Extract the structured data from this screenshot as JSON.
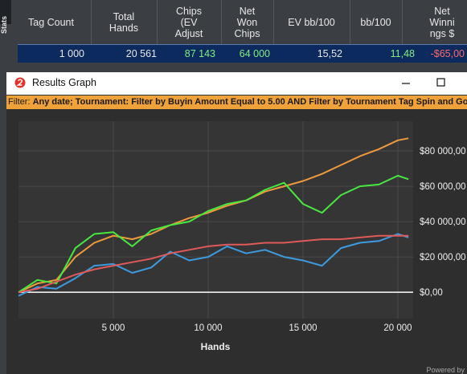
{
  "stats_table": {
    "tab": "Stats",
    "headers": [
      [
        "Tag Count"
      ],
      [
        "Total",
        "Hands"
      ],
      [
        "Chips",
        "(EV",
        "Adjust"
      ],
      [
        "Net",
        "Won",
        "Chips"
      ],
      [
        "EV bb/100"
      ],
      [
        "bb/100"
      ],
      [
        "Net",
        "Winni",
        "ngs $"
      ]
    ],
    "row": [
      "1 000",
      "20 561",
      "87 143",
      "64 000",
      "15,52",
      "11,48",
      "-$65,00"
    ]
  },
  "window": {
    "title": "Results Graph",
    "filter_label": "Filter:",
    "filter_text": "Any date; Tournament: Filter by Buyin Amount Equal to 5.00 AND Filter by Tournament Tag  Spin and Go Win",
    "footer": "Powered by"
  },
  "chart_data": {
    "type": "line",
    "x_label": "Hands",
    "x": [
      0,
      1000,
      2000,
      3000,
      4000,
      5000,
      6000,
      7000,
      8000,
      9000,
      10000,
      11000,
      12000,
      13000,
      14000,
      15000,
      16000,
      17000,
      18000,
      19000,
      20000,
      20561
    ],
    "series": [
      {
        "color": "#ef9a3c",
        "values": [
          0,
          5000,
          7000,
          20000,
          28000,
          32000,
          30000,
          33000,
          38000,
          42000,
          45000,
          49000,
          52000,
          57000,
          60000,
          63000,
          67000,
          72000,
          77000,
          81000,
          86000,
          87143
        ]
      },
      {
        "color": "#49e83f",
        "values": [
          0,
          7000,
          5000,
          25000,
          33000,
          34000,
          26000,
          35000,
          38000,
          40000,
          46000,
          50000,
          52000,
          58000,
          62000,
          50000,
          45000,
          55000,
          60000,
          61000,
          66000,
          64000
        ]
      },
      {
        "color": "#3d9be0",
        "values": [
          -2000,
          3000,
          2000,
          8000,
          15000,
          16000,
          11000,
          14000,
          23000,
          18000,
          20000,
          26000,
          22000,
          24000,
          20000,
          18000,
          15000,
          25000,
          28000,
          29000,
          33000,
          31000
        ]
      },
      {
        "color": "#e05a5a",
        "values": [
          0,
          2000,
          6000,
          10000,
          13000,
          15000,
          17000,
          19000,
          22000,
          24000,
          26000,
          27000,
          27000,
          28000,
          28000,
          29000,
          30000,
          30000,
          31000,
          32000,
          32000,
          32000
        ]
      }
    ],
    "xlim": [
      0,
      20700
    ],
    "ylim": [
      -14000,
      95000
    ],
    "xticks": [
      {
        "value": 5000,
        "label": "5 000"
      },
      {
        "value": 10000,
        "label": "10 000"
      },
      {
        "value": 15000,
        "label": "15 000"
      },
      {
        "value": 20000,
        "label": "20 000"
      }
    ],
    "yticks": [
      {
        "value": 0,
        "label": "$0,00"
      },
      {
        "value": 20000,
        "label": "$20 000,00"
      },
      {
        "value": 40000,
        "label": "$40 000,00"
      },
      {
        "value": 60000,
        "label": "$60 000,00"
      },
      {
        "value": 80000,
        "label": "$80 000,00"
      }
    ],
    "grid": true
  }
}
